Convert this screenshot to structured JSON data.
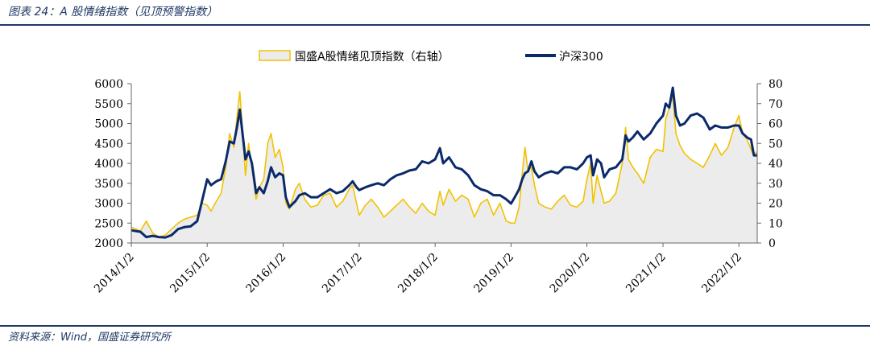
{
  "header": {
    "caption": "图表 24：A 股情绪指数（见顶预警指数）"
  },
  "footer": {
    "source": "资料来源：Wind，国盛证券研究所"
  },
  "colors": {
    "sentiment": "#f2c200",
    "sentiment_fill": "#ececec",
    "hs300": "#0b2a6b",
    "rule": "#1f3864"
  },
  "chart_data": {
    "type": "area",
    "title": "",
    "legend_placement": "top-center",
    "legend": [
      "国盛A股情绪见顶指数（右轴）",
      "沪深300"
    ],
    "x_tick_labels": [
      "2014/1/2",
      "2015/1/2",
      "2016/1/2",
      "2017/1/2",
      "2018/1/2",
      "2019/1/2",
      "2020/1/2",
      "2021/1/2",
      "2022/1/2"
    ],
    "x_range": [
      "2014/1/2",
      "2022/3/31"
    ],
    "y_left": {
      "lim": [
        2000,
        6000
      ],
      "ticks": [
        2000,
        2500,
        3000,
        3500,
        4000,
        4500,
        5000,
        5500,
        6000
      ]
    },
    "y_right": {
      "lim": [
        0,
        80
      ],
      "ticks": [
        0,
        10,
        20,
        30,
        40,
        50,
        60,
        70,
        80
      ]
    },
    "grid": false,
    "series": [
      {
        "name": "国盛A股情绪见顶指数（右轴）",
        "axis": "right",
        "style": "area-with-line",
        "points": [
          [
            "2014/1/2",
            8
          ],
          [
            "2014/2/15",
            6
          ],
          [
            "2014/3/15",
            11
          ],
          [
            "2014/4/15",
            5
          ],
          [
            "2014/5/15",
            3
          ],
          [
            "2014/6/15",
            4
          ],
          [
            "2014/7/15",
            7
          ],
          [
            "2014/8/15",
            10
          ],
          [
            "2014/9/15",
            12
          ],
          [
            "2014/10/15",
            13
          ],
          [
            "2014/11/15",
            14
          ],
          [
            "2014/12/10",
            20
          ],
          [
            "2015/1/2",
            19
          ],
          [
            "2015/1/20",
            16
          ],
          [
            "2015/2/15",
            21
          ],
          [
            "2015/3/10",
            25
          ],
          [
            "2015/4/1",
            38
          ],
          [
            "2015/4/20",
            55
          ],
          [
            "2015/5/10",
            48
          ],
          [
            "2015/5/25",
            63
          ],
          [
            "2015/6/8",
            76
          ],
          [
            "2015/6/20",
            58
          ],
          [
            "2015/7/5",
            34
          ],
          [
            "2015/7/20",
            50
          ],
          [
            "2015/8/5",
            38
          ],
          [
            "2015/8/25",
            22
          ],
          [
            "2015/9/10",
            28
          ],
          [
            "2015/10/1",
            32
          ],
          [
            "2015/10/20",
            50
          ],
          [
            "2015/11/5",
            55
          ],
          [
            "2015/11/25",
            43
          ],
          [
            "2015/12/15",
            47
          ],
          [
            "2016/1/2",
            38
          ],
          [
            "2016/1/15",
            20
          ],
          [
            "2016/2/1",
            17
          ],
          [
            "2016/3/1",
            27
          ],
          [
            "2016/3/20",
            30
          ],
          [
            "2016/4/15",
            22
          ],
          [
            "2016/5/15",
            18
          ],
          [
            "2016/6/15",
            19
          ],
          [
            "2016/7/15",
            24
          ],
          [
            "2016/8/15",
            25
          ],
          [
            "2016/9/15",
            18
          ],
          [
            "2016/10/15",
            21
          ],
          [
            "2016/11/15",
            27
          ],
          [
            "2016/12/1",
            29
          ],
          [
            "2016/12/20",
            20
          ],
          [
            "2017/1/2",
            14
          ],
          [
            "2017/2/1",
            19
          ],
          [
            "2017/3/1",
            22
          ],
          [
            "2017/4/1",
            18
          ],
          [
            "2017/5/1",
            13
          ],
          [
            "2017/6/1",
            16
          ],
          [
            "2017/7/1",
            19
          ],
          [
            "2017/8/1",
            22
          ],
          [
            "2017/9/1",
            18
          ],
          [
            "2017/10/1",
            15
          ],
          [
            "2017/11/1",
            20
          ],
          [
            "2017/12/1",
            16
          ],
          [
            "2018/1/2",
            14
          ],
          [
            "2018/1/25",
            26
          ],
          [
            "2018/2/10",
            19
          ],
          [
            "2018/3/10",
            27
          ],
          [
            "2018/4/10",
            21
          ],
          [
            "2018/5/10",
            24
          ],
          [
            "2018/6/10",
            22
          ],
          [
            "2018/7/10",
            13
          ],
          [
            "2018/8/10",
            20
          ],
          [
            "2018/9/10",
            22
          ],
          [
            "2018/10/10",
            14
          ],
          [
            "2018/11/10",
            20
          ],
          [
            "2018/12/10",
            11
          ],
          [
            "2019/1/2",
            10
          ],
          [
            "2019/1/20",
            10
          ],
          [
            "2019/2/10",
            18
          ],
          [
            "2019/2/25",
            35
          ],
          [
            "2019/3/10",
            48
          ],
          [
            "2019/3/25",
            36
          ],
          [
            "2019/4/10",
            38
          ],
          [
            "2019/4/25",
            29
          ],
          [
            "2019/5/15",
            20
          ],
          [
            "2019/6/15",
            18
          ],
          [
            "2019/7/15",
            17
          ],
          [
            "2019/8/15",
            21
          ],
          [
            "2019/9/15",
            24
          ],
          [
            "2019/10/15",
            19
          ],
          [
            "2019/11/15",
            18
          ],
          [
            "2019/12/15",
            21
          ],
          [
            "2020/1/2",
            32
          ],
          [
            "2020/1/20",
            40
          ],
          [
            "2020/2/1",
            20
          ],
          [
            "2020/2/20",
            34
          ],
          [
            "2020/3/10",
            26
          ],
          [
            "2020/3/25",
            20
          ],
          [
            "2020/4/20",
            21
          ],
          [
            "2020/5/20",
            25
          ],
          [
            "2020/6/20",
            40
          ],
          [
            "2020/7/6",
            58
          ],
          [
            "2020/7/20",
            42
          ],
          [
            "2020/8/10",
            38
          ],
          [
            "2020/9/1",
            35
          ],
          [
            "2020/10/1",
            30
          ],
          [
            "2020/11/1",
            43
          ],
          [
            "2020/12/1",
            47
          ],
          [
            "2021/1/2",
            46
          ],
          [
            "2021/1/15",
            62
          ],
          [
            "2021/2/1",
            68
          ],
          [
            "2021/2/18",
            74
          ],
          [
            "2021/3/5",
            55
          ],
          [
            "2021/3/25",
            49
          ],
          [
            "2021/4/15",
            45
          ],
          [
            "2021/5/15",
            42
          ],
          [
            "2021/6/15",
            40
          ],
          [
            "2021/7/15",
            38
          ],
          [
            "2021/8/15",
            44
          ],
          [
            "2021/9/10",
            50
          ],
          [
            "2021/10/10",
            44
          ],
          [
            "2021/11/10",
            48
          ],
          [
            "2021/12/10",
            58
          ],
          [
            "2022/1/2",
            64
          ],
          [
            "2022/1/20",
            55
          ],
          [
            "2022/2/10",
            52
          ],
          [
            "2022/3/1",
            47
          ],
          [
            "2022/3/15",
            44
          ],
          [
            "2022/3/31",
            46
          ]
        ]
      },
      {
        "name": "沪深300",
        "axis": "left",
        "style": "line",
        "points": [
          [
            "2014/1/2",
            2320
          ],
          [
            "2014/2/15",
            2280
          ],
          [
            "2014/3/15",
            2150
          ],
          [
            "2014/4/15",
            2180
          ],
          [
            "2014/5/15",
            2150
          ],
          [
            "2014/6/15",
            2140
          ],
          [
            "2014/7/15",
            2200
          ],
          [
            "2014/8/15",
            2350
          ],
          [
            "2014/9/15",
            2400
          ],
          [
            "2014/10/15",
            2420
          ],
          [
            "2014/11/15",
            2550
          ],
          [
            "2014/12/10",
            3100
          ],
          [
            "2015/1/2",
            3600
          ],
          [
            "2015/1/20",
            3450
          ],
          [
            "2015/2/15",
            3550
          ],
          [
            "2015/3/10",
            3600
          ],
          [
            "2015/4/1",
            4050
          ],
          [
            "2015/4/20",
            4550
          ],
          [
            "2015/5/10",
            4500
          ],
          [
            "2015/5/25",
            4900
          ],
          [
            "2015/6/8",
            5350
          ],
          [
            "2015/6/20",
            4800
          ],
          [
            "2015/7/5",
            4100
          ],
          [
            "2015/7/20",
            4300
          ],
          [
            "2015/8/5",
            4000
          ],
          [
            "2015/8/25",
            3250
          ],
          [
            "2015/9/10",
            3400
          ],
          [
            "2015/10/1",
            3250
          ],
          [
            "2015/10/20",
            3550
          ],
          [
            "2015/11/5",
            3900
          ],
          [
            "2015/11/25",
            3650
          ],
          [
            "2015/12/15",
            3750
          ],
          [
            "2016/1/2",
            3700
          ],
          [
            "2016/1/15",
            3150
          ],
          [
            "2016/2/1",
            2900
          ],
          [
            "2016/3/1",
            3050
          ],
          [
            "2016/3/20",
            3200
          ],
          [
            "2016/4/15",
            3250
          ],
          [
            "2016/5/15",
            3150
          ],
          [
            "2016/6/15",
            3150
          ],
          [
            "2016/7/15",
            3250
          ],
          [
            "2016/8/15",
            3350
          ],
          [
            "2016/9/15",
            3250
          ],
          [
            "2016/10/15",
            3300
          ],
          [
            "2016/11/15",
            3450
          ],
          [
            "2016/12/1",
            3550
          ],
          [
            "2016/12/20",
            3400
          ],
          [
            "2017/1/2",
            3330
          ],
          [
            "2017/2/1",
            3400
          ],
          [
            "2017/3/1",
            3450
          ],
          [
            "2017/4/1",
            3500
          ],
          [
            "2017/5/1",
            3450
          ],
          [
            "2017/6/1",
            3600
          ],
          [
            "2017/7/1",
            3700
          ],
          [
            "2017/8/1",
            3750
          ],
          [
            "2017/9/1",
            3820
          ],
          [
            "2017/10/1",
            3850
          ],
          [
            "2017/11/1",
            4050
          ],
          [
            "2017/12/1",
            4000
          ],
          [
            "2018/1/2",
            4100
          ],
          [
            "2018/1/25",
            4380
          ],
          [
            "2018/2/10",
            4000
          ],
          [
            "2018/3/10",
            4150
          ],
          [
            "2018/4/10",
            3900
          ],
          [
            "2018/5/10",
            3850
          ],
          [
            "2018/6/10",
            3700
          ],
          [
            "2018/7/10",
            3450
          ],
          [
            "2018/8/10",
            3350
          ],
          [
            "2018/9/10",
            3300
          ],
          [
            "2018/10/10",
            3200
          ],
          [
            "2018/11/10",
            3200
          ],
          [
            "2018/12/10",
            3100
          ],
          [
            "2019/1/2",
            2990
          ],
          [
            "2019/1/20",
            3150
          ],
          [
            "2019/2/10",
            3350
          ],
          [
            "2019/2/25",
            3600
          ],
          [
            "2019/3/10",
            3750
          ],
          [
            "2019/3/25",
            3800
          ],
          [
            "2019/4/10",
            4050
          ],
          [
            "2019/4/25",
            3800
          ],
          [
            "2019/5/15",
            3650
          ],
          [
            "2019/6/15",
            3750
          ],
          [
            "2019/7/15",
            3800
          ],
          [
            "2019/8/15",
            3750
          ],
          [
            "2019/9/15",
            3900
          ],
          [
            "2019/10/15",
            3900
          ],
          [
            "2019/11/15",
            3850
          ],
          [
            "2019/12/15",
            4000
          ],
          [
            "2020/1/2",
            4150
          ],
          [
            "2020/1/20",
            4200
          ],
          [
            "2020/2/1",
            3700
          ],
          [
            "2020/2/20",
            4100
          ],
          [
            "2020/3/10",
            4000
          ],
          [
            "2020/3/25",
            3650
          ],
          [
            "2020/4/20",
            3850
          ],
          [
            "2020/5/20",
            3900
          ],
          [
            "2020/6/20",
            4100
          ],
          [
            "2020/7/6",
            4700
          ],
          [
            "2020/7/20",
            4550
          ],
          [
            "2020/8/10",
            4650
          ],
          [
            "2020/9/1",
            4800
          ],
          [
            "2020/10/1",
            4600
          ],
          [
            "2020/11/1",
            4750
          ],
          [
            "2020/12/1",
            5000
          ],
          [
            "2021/1/2",
            5200
          ],
          [
            "2021/1/15",
            5500
          ],
          [
            "2021/2/1",
            5400
          ],
          [
            "2021/2/18",
            5900
          ],
          [
            "2021/3/5",
            5200
          ],
          [
            "2021/3/25",
            4950
          ],
          [
            "2021/4/15",
            5000
          ],
          [
            "2021/5/15",
            5200
          ],
          [
            "2021/6/15",
            5250
          ],
          [
            "2021/7/15",
            5150
          ],
          [
            "2021/8/15",
            4850
          ],
          [
            "2021/9/10",
            4950
          ],
          [
            "2021/10/10",
            4900
          ],
          [
            "2021/11/10",
            4900
          ],
          [
            "2021/12/10",
            4950
          ],
          [
            "2022/1/2",
            4950
          ],
          [
            "2022/1/20",
            4750
          ],
          [
            "2022/2/10",
            4650
          ],
          [
            "2022/3/1",
            4600
          ],
          [
            "2022/3/15",
            4200
          ],
          [
            "2022/3/31",
            4200
          ]
        ]
      }
    ]
  }
}
